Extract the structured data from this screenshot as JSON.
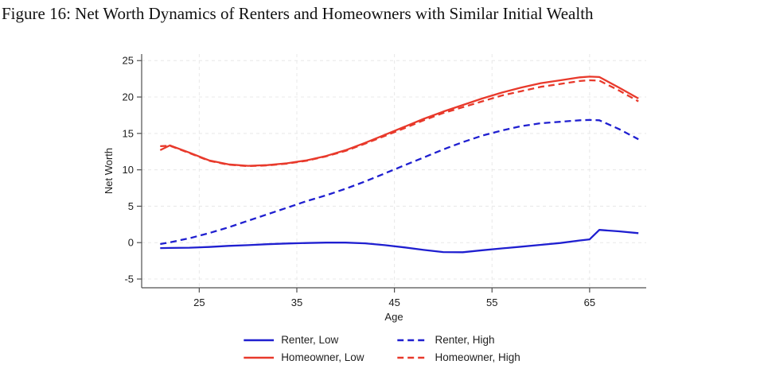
{
  "chart_data": {
    "type": "line",
    "title": "Figure 16: Net Worth Dynamics of Renters and Homeowners with Similar Initial Wealth",
    "xlabel": "Age",
    "ylabel": "Net Worth",
    "x_ticks": [
      25,
      35,
      45,
      55,
      65
    ],
    "y_ticks": [
      25,
      20,
      15,
      10,
      5,
      0,
      -5
    ],
    "x_range": [
      19.1,
      70.8
    ],
    "y_range": [
      -6.2,
      25.9
    ],
    "grid": true,
    "legend_position": "bottom",
    "x": [
      21,
      22,
      24,
      26,
      28,
      30,
      32,
      34,
      36,
      38,
      40,
      42,
      44,
      46,
      48,
      50,
      52,
      54,
      56,
      58,
      60,
      62,
      64,
      65,
      66,
      68,
      70
    ],
    "series": [
      {
        "name": "Renter, Low",
        "color": "#1f1fd0",
        "dash": "solid",
        "values": [
          -0.75,
          -0.73,
          -0.7,
          -0.6,
          -0.45,
          -0.35,
          -0.22,
          -0.12,
          -0.05,
          0,
          0,
          -0.1,
          -0.35,
          -0.65,
          -1.0,
          -1.3,
          -1.32,
          -1.05,
          -0.8,
          -0.55,
          -0.3,
          -0.05,
          0.3,
          0.45,
          1.75,
          1.55,
          1.3
        ]
      },
      {
        "name": "Renter, High",
        "color": "#1f1fd0",
        "dash": "dashed",
        "values": [
          -0.2,
          0.05,
          0.6,
          1.3,
          2.1,
          3.0,
          3.9,
          4.8,
          5.7,
          6.5,
          7.4,
          8.4,
          9.5,
          10.6,
          11.7,
          12.8,
          13.8,
          14.7,
          15.4,
          16.0,
          16.4,
          16.6,
          16.8,
          16.85,
          16.8,
          15.6,
          14.2
        ]
      },
      {
        "name": "Homeowner, Low",
        "color": "#e8392b",
        "dash": "solid",
        "values": [
          12.7,
          13.35,
          12.35,
          11.3,
          10.75,
          10.55,
          10.65,
          10.9,
          11.3,
          11.9,
          12.7,
          13.7,
          14.8,
          15.9,
          17.0,
          18.0,
          18.9,
          19.8,
          20.6,
          21.3,
          21.9,
          22.3,
          22.7,
          22.8,
          22.75,
          21.3,
          19.8
        ]
      },
      {
        "name": "Homeowner, High",
        "color": "#e8392b",
        "dash": "dashed",
        "values": [
          13.25,
          13.3,
          12.3,
          11.25,
          10.7,
          10.5,
          10.6,
          10.85,
          11.25,
          11.85,
          12.6,
          13.6,
          14.65,
          15.7,
          16.8,
          17.8,
          18.6,
          19.4,
          20.2,
          20.8,
          21.4,
          21.8,
          22.2,
          22.3,
          22.25,
          20.9,
          19.4
        ]
      }
    ],
    "colors": {
      "grid": "#e8e8e8",
      "axis": "#4f4f4f",
      "tick_text": "#1c1c1c"
    }
  }
}
